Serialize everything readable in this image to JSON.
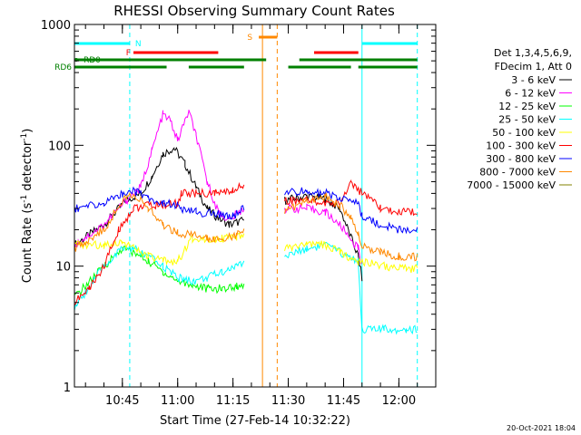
{
  "chart_data": {
    "type": "line",
    "title": "RHESSI Observing Summary Count Rates",
    "xlabel": "Start Time (27-Feb-14 10:32:22)",
    "ylabel_main": "Count Rate (s",
    "ylabel_exp1": "-1",
    "ylabel_mid": " detector",
    "ylabel_exp2": "-1",
    "ylabel_end": ")",
    "y_scale": "log",
    "ylim": [
      1,
      1000
    ],
    "xlim": [
      "10:32",
      "12:10"
    ],
    "xticks": [
      {
        "t": "10:45",
        "label": "10:45"
      },
      {
        "t": "11:00",
        "label": "11:00"
      },
      {
        "t": "11:15",
        "label": "11:15"
      },
      {
        "t": "11:30",
        "label": "11:30"
      },
      {
        "t": "11:45",
        "label": "11:45"
      },
      {
        "t": "12:00",
        "label": "12:00"
      }
    ],
    "yticks": [
      {
        "v": 1,
        "label": "1"
      },
      {
        "v": 10,
        "label": "10"
      },
      {
        "v": 100,
        "label": "100"
      },
      {
        "v": 1000,
        "label": "1000"
      }
    ],
    "legend_header": [
      "Det 1,3,4,5,6,9,",
      "FDecim 1, Att 0"
    ],
    "legend_placement": "right",
    "series": [
      {
        "name": "3 - 6 keV",
        "color": "#000000",
        "x": [
          "10:32",
          "10:40",
          "10:46",
          "10:50",
          "10:53",
          "10:56",
          "10:59",
          "11:02",
          "11:05",
          "11:08",
          "11:11",
          "11:14",
          "11:18",
          "11:29",
          "11:35",
          "11:40",
          "11:44",
          "11:49",
          "11:50"
        ],
        "y": [
          15,
          22,
          35,
          40,
          55,
          85,
          95,
          70,
          45,
          30,
          25,
          22,
          24,
          35,
          38,
          36,
          30,
          12,
          8
        ]
      },
      {
        "name": "6 - 12 keV",
        "color": "#ff00ff",
        "x": [
          "10:32",
          "10:40",
          "10:46",
          "10:50",
          "10:53",
          "10:56",
          "10:58",
          "11:00",
          "11:03",
          "11:05",
          "11:08",
          "11:11",
          "11:14",
          "11:18",
          "11:29",
          "11:35",
          "11:40",
          "11:44",
          "11:49",
          "11:50"
        ],
        "y": [
          15,
          22,
          35,
          45,
          90,
          180,
          160,
          110,
          190,
          120,
          50,
          28,
          24,
          30,
          30,
          30,
          28,
          22,
          14,
          10
        ]
      },
      {
        "name": "12 - 25 keV",
        "color": "#00ff00",
        "x": [
          "10:32",
          "10:40",
          "10:45",
          "10:48",
          "10:52",
          "10:56",
          "11:00",
          "11:04",
          "11:08",
          "11:12",
          "11:16",
          "11:18"
        ],
        "y": [
          5.5,
          10,
          14,
          13,
          11,
          9,
          7.5,
          7,
          6.5,
          6.5,
          6.8,
          7
        ]
      },
      {
        "name": "25 - 50 keV",
        "color": "#00ffff",
        "x": [
          "10:32",
          "10:40",
          "10:45",
          "10:48",
          "10:52",
          "10:56",
          "11:00",
          "11:04",
          "11:08",
          "11:12",
          "11:16",
          "11:18",
          "11:29",
          "11:35",
          "11:40",
          "11:44",
          "11:49",
          "11:50",
          "11:56",
          "12:02",
          "12:05"
        ],
        "y": [
          4.5,
          10,
          14,
          14,
          12,
          10,
          8,
          7.5,
          8,
          9,
          10,
          11,
          12,
          14,
          15,
          13,
          11,
          3,
          3,
          3,
          3
        ]
      },
      {
        "name": "50 - 100 keV",
        "color": "#ffff00",
        "x": [
          "10:32",
          "10:40",
          "10:45",
          "10:48",
          "10:52",
          "10:56",
          "11:00",
          "11:04",
          "11:08",
          "11:12",
          "11:16",
          "11:18",
          "11:29",
          "11:35",
          "11:40",
          "11:44",
          "11:49",
          "11:50",
          "11:56",
          "12:02",
          "12:05"
        ],
        "y": [
          15,
          15,
          16,
          14,
          12,
          11,
          11,
          17,
          17,
          17,
          17,
          18,
          14,
          15,
          15,
          13,
          11,
          11,
          10,
          9.5,
          9.5
        ]
      },
      {
        "name": "100 - 300 keV",
        "color": "#ff0000",
        "x": [
          "10:32",
          "10:36",
          "10:40",
          "10:44",
          "10:48",
          "10:52",
          "10:56",
          "11:00",
          "11:01",
          "11:05",
          "11:10",
          "11:15",
          "11:18",
          "11:29",
          "11:35",
          "11:40",
          "11:44",
          "11:47",
          "11:50",
          "11:55",
          "12:00",
          "12:05"
        ],
        "y": [
          5,
          6.5,
          10,
          20,
          30,
          32,
          32,
          33,
          40,
          40,
          40,
          42,
          48,
          35,
          35,
          33,
          33,
          50,
          40,
          30,
          28,
          28
        ]
      },
      {
        "name": "300 - 800 keV",
        "color": "#0000ff",
        "x": [
          "10:32",
          "10:40",
          "10:45",
          "10:48",
          "10:52",
          "10:56",
          "11:00",
          "11:01",
          "11:05",
          "11:10",
          "11:15",
          "11:18",
          "11:29",
          "11:35",
          "11:40",
          "11:44",
          "11:49",
          "11:50",
          "11:55",
          "12:00",
          "12:05"
        ],
        "y": [
          30,
          33,
          40,
          42,
          37,
          33,
          32,
          29,
          28,
          27,
          26,
          30,
          40,
          42,
          40,
          37,
          33,
          26,
          22,
          20,
          20
        ]
      },
      {
        "name": "800 - 7000 keV",
        "color": "#ff8800",
        "x": [
          "10:32",
          "10:40",
          "10:45",
          "10:48",
          "10:52",
          "10:56",
          "11:00",
          "11:04",
          "11:08",
          "11:12",
          "11:16",
          "11:18",
          "11:29",
          "11:35",
          "11:40",
          "11:44",
          "11:47",
          "11:49",
          "11:50",
          "11:55",
          "12:00",
          "12:05"
        ],
        "y": [
          14,
          20,
          35,
          40,
          30,
          22,
          19,
          18,
          17,
          17,
          18,
          20,
          28,
          35,
          38,
          32,
          25,
          18,
          15,
          13,
          12,
          12
        ]
      },
      {
        "name": "7000 - 15000 keV",
        "color": "#808000",
        "x": [],
        "y": []
      }
    ],
    "flags": [
      {
        "label": "N",
        "color": "#00ffff",
        "segments": [
          [
            "10:32",
            "10:47"
          ],
          [
            "11:50",
            "12:05"
          ]
        ]
      },
      {
        "label": "F",
        "color": "#ff0000",
        "segments": [
          [
            "10:48",
            "11:11"
          ],
          [
            "11:37",
            "11:49"
          ]
        ]
      },
      {
        "label": "S",
        "color": "#ff8800",
        "segments": [
          [
            "11:22",
            "11:27"
          ]
        ]
      },
      {
        "label": "RD0",
        "color": "#008000",
        "segments": [
          [
            "10:32",
            "11:24"
          ],
          [
            "11:33",
            "12:05"
          ]
        ]
      },
      {
        "label": "RD6",
        "color": "#008000",
        "segments": [
          [
            "10:32",
            "10:57"
          ],
          [
            "11:03",
            "11:18"
          ],
          [
            "11:30",
            "11:47"
          ],
          [
            "11:49",
            "12:05"
          ]
        ]
      }
    ],
    "vlines": [
      {
        "t": "10:47",
        "color": "#00ffff",
        "style": "dashed"
      },
      {
        "t": "11:23",
        "color": "#ff8800",
        "style": "solid"
      },
      {
        "t": "11:27",
        "color": "#ff8800",
        "style": "dashed"
      },
      {
        "t": "11:50",
        "color": "#00ffff",
        "style": "solid"
      },
      {
        "t": "12:05",
        "color": "#00ffff",
        "style": "dashed"
      }
    ],
    "gaps": [
      [
        "11:18",
        "11:29"
      ]
    ]
  },
  "footer": {
    "timestamp": "20-Oct-2021 18:04"
  }
}
